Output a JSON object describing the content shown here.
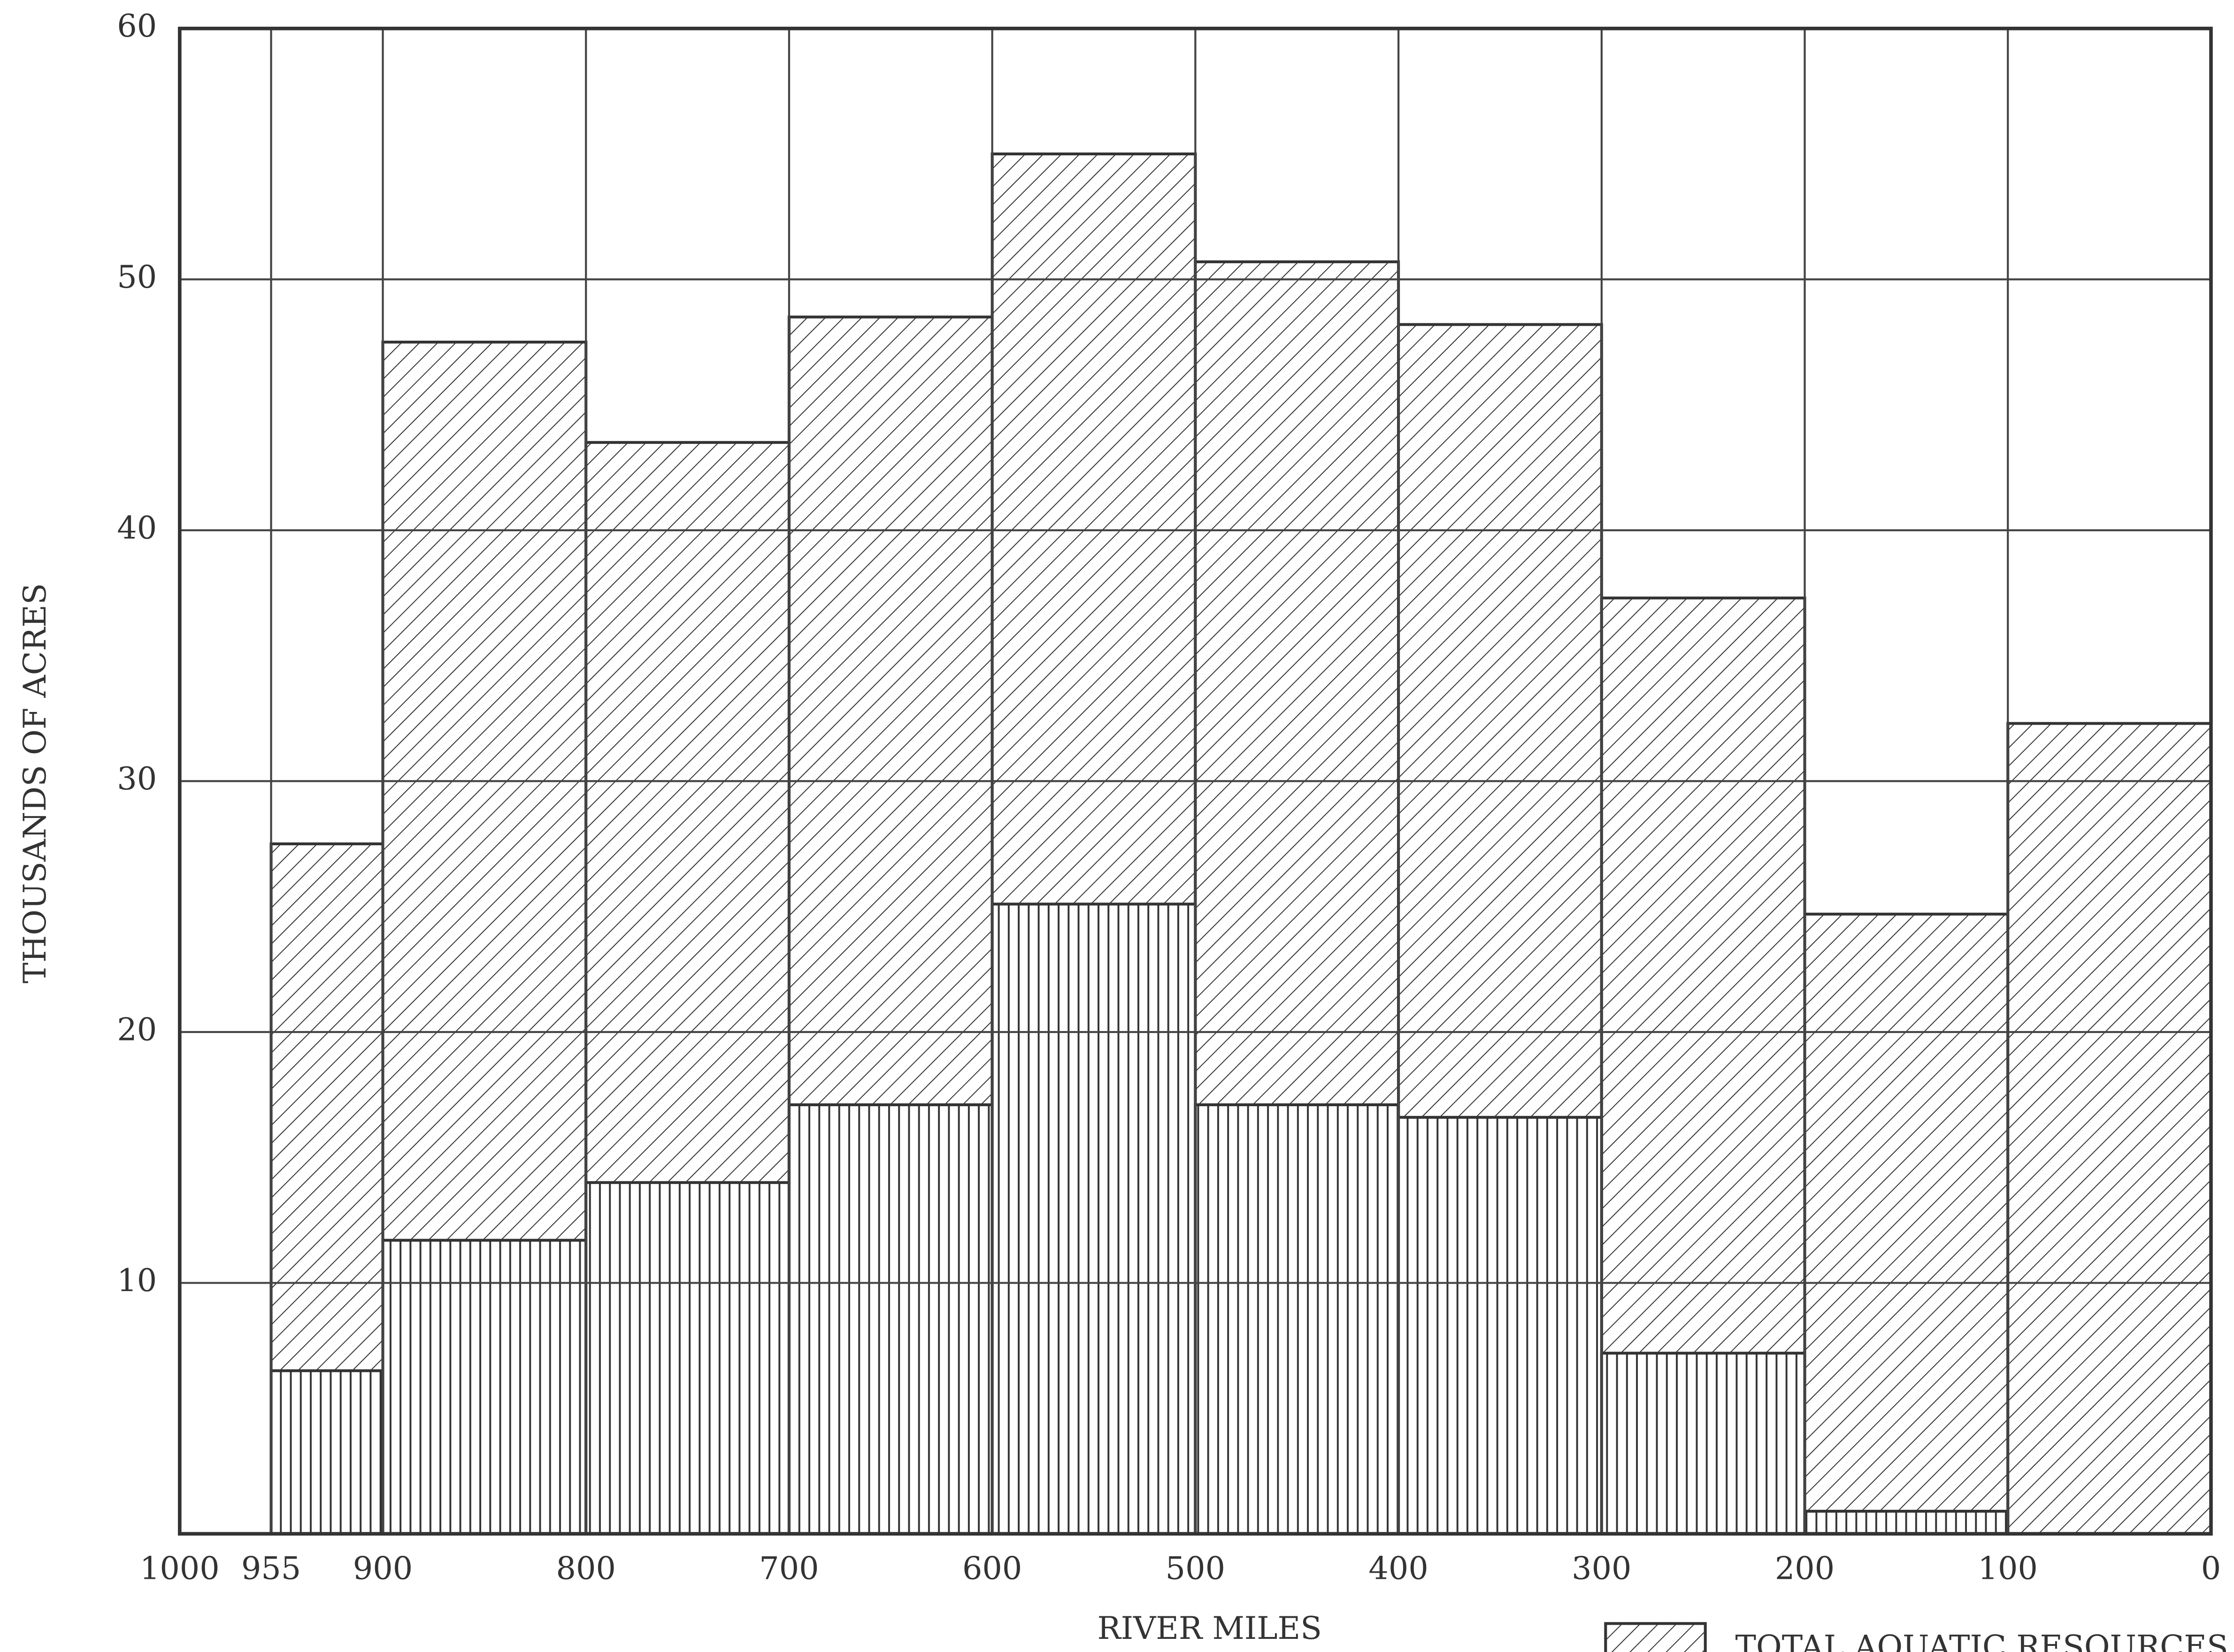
{
  "chart_data": {
    "type": "histogram",
    "x_label": "RIVER MILES",
    "y_label": "THOUSANDS OF ACRES",
    "bins": [
      955,
      900,
      800,
      700,
      600,
      500,
      400,
      300,
      200,
      100,
      0
    ],
    "series": [
      {
        "name": "TOTAL AQUATIC RESOURCES",
        "color": "#333333",
        "pattern": "diagonal",
        "values": [
          27.5,
          47.5,
          43.5,
          48.5,
          55,
          50.7,
          48.2,
          37.3,
          24.7,
          32.3
        ]
      },
      {
        "color": "#333333",
        "pattern": "vertical",
        "values": [
          6.5,
          11.7,
          14,
          17.1,
          25.1,
          17.1,
          16.6,
          7.2,
          0.9,
          0
        ]
      }
    ],
    "xlim": [
      1000,
      0
    ],
    "xticks": [
      1000,
      955,
      900,
      800,
      700,
      600,
      500,
      400,
      300,
      200,
      100,
      0
    ],
    "ylim": [
      0,
      60
    ],
    "yticks": [
      10,
      20,
      30,
      40,
      50,
      60
    ],
    "grid": true
  }
}
